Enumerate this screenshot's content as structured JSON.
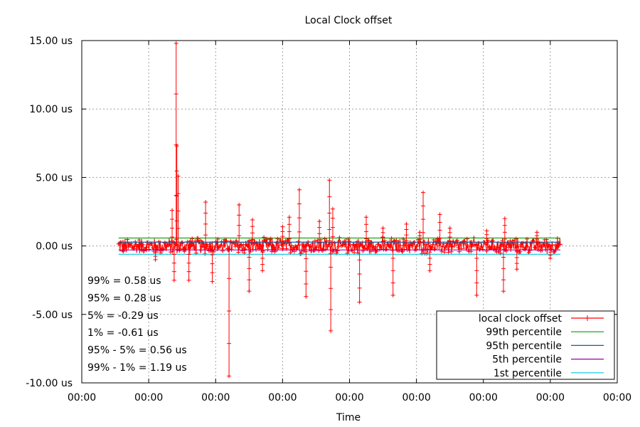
{
  "chart_data": {
    "type": "line",
    "title": "Local Clock offset",
    "xlabel": "Time",
    "ylabel": "",
    "ylim": [
      -10,
      15
    ],
    "xlim": [
      0,
      8
    ],
    "x_tick_labels": [
      "00:00",
      "00:00",
      "00:00",
      "00:00",
      "00:00",
      "00:00",
      "00:00",
      "00:00",
      "00:00"
    ],
    "y_ticks": [
      15,
      10,
      5,
      0,
      -5,
      -10
    ],
    "y_tick_labels": [
      "15.00 us",
      "10.00 us",
      "5.00 us",
      "0.00 us",
      "-5.00 us",
      "-10.00 us"
    ],
    "grid": true,
    "legend_position": "bottom-right",
    "data_range": [
      0.55,
      7.15
    ],
    "series": [
      {
        "name": "local clock offset",
        "color": "#ff0000",
        "marker": "plus",
        "noise_amplitude": 0.6,
        "spikes": [
          {
            "x": 1.1,
            "y": -1.0
          },
          {
            "x": 1.35,
            "y": 2.6
          },
          {
            "x": 1.41,
            "y": 14.8
          },
          {
            "x": 1.42,
            "y": 7.3
          },
          {
            "x": 1.44,
            "y": 5.1
          },
          {
            "x": 1.38,
            "y": -2.5
          },
          {
            "x": 1.6,
            "y": -2.5
          },
          {
            "x": 1.85,
            "y": 3.2
          },
          {
            "x": 1.95,
            "y": -2.6
          },
          {
            "x": 2.2,
            "y": -9.5
          },
          {
            "x": 2.35,
            "y": 3.0
          },
          {
            "x": 2.5,
            "y": -3.3
          },
          {
            "x": 2.55,
            "y": 1.9
          },
          {
            "x": 2.7,
            "y": -1.8
          },
          {
            "x": 3.0,
            "y": 1.4
          },
          {
            "x": 3.1,
            "y": 2.1
          },
          {
            "x": 3.25,
            "y": 4.1
          },
          {
            "x": 3.35,
            "y": -3.7
          },
          {
            "x": 3.55,
            "y": 1.8
          },
          {
            "x": 3.7,
            "y": 4.8
          },
          {
            "x": 3.72,
            "y": -6.2
          },
          {
            "x": 3.75,
            "y": 2.7
          },
          {
            "x": 4.15,
            "y": -4.1
          },
          {
            "x": 4.25,
            "y": 2.1
          },
          {
            "x": 4.5,
            "y": 1.3
          },
          {
            "x": 4.65,
            "y": -3.6
          },
          {
            "x": 4.85,
            "y": 1.6
          },
          {
            "x": 5.05,
            "y": 1.0
          },
          {
            "x": 5.1,
            "y": 3.9
          },
          {
            "x": 5.2,
            "y": -1.8
          },
          {
            "x": 5.35,
            "y": 2.3
          },
          {
            "x": 5.5,
            "y": 1.3
          },
          {
            "x": 5.9,
            "y": -3.6
          },
          {
            "x": 6.05,
            "y": 1.1
          },
          {
            "x": 6.3,
            "y": -3.3
          },
          {
            "x": 6.32,
            "y": 2.0
          },
          {
            "x": 6.5,
            "y": -1.7
          },
          {
            "x": 6.8,
            "y": 1.0
          },
          {
            "x": 7.0,
            "y": -0.9
          }
        ]
      },
      {
        "name": "99th percentile",
        "color": "#00a000",
        "value": 0.58
      },
      {
        "name": "95th percentile",
        "color": "#0060ad",
        "value": 0.28
      },
      {
        "name": "5th percentile",
        "color": "#a000a0",
        "value": -0.29
      },
      {
        "name": "1st percentile",
        "color": "#00c8e0",
        "value": -0.61
      }
    ],
    "annotations": [
      "99% = 0.58 us",
      "95% = 0.28 us",
      " 5% = -0.29 us",
      " 1% = -0.61 us",
      "95% - 5% = 0.56 us",
      "99% - 1% = 1.19 us"
    ]
  }
}
